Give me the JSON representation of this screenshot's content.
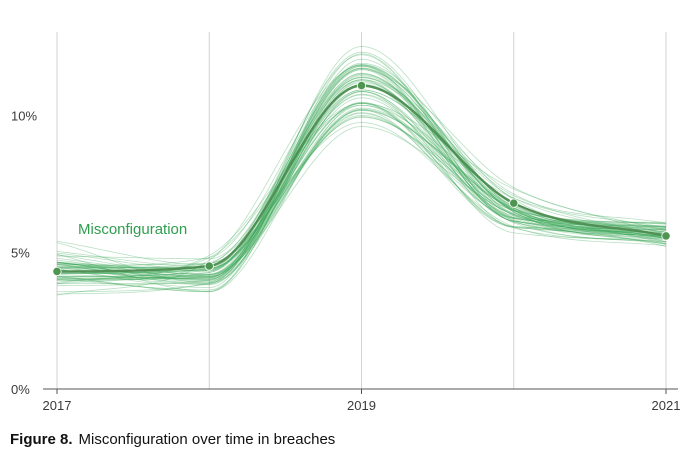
{
  "colors": {
    "band": "#3aa757",
    "mean_line": "#4a8a4e",
    "marker": "#4f9552",
    "label": "#2e9e4f",
    "grid": "#d2d2d2",
    "axis": "#555555"
  },
  "chart_data": {
    "type": "line",
    "title": "",
    "xlabel": "",
    "ylabel": "",
    "x_ticks": [
      {
        "value": 2017,
        "label": "2017"
      },
      {
        "value": 2019,
        "label": "2019"
      },
      {
        "value": 2021,
        "label": "2021"
      }
    ],
    "x_gridlines": [
      2017,
      2018,
      2019,
      2020,
      2021
    ],
    "y_ticks": [
      {
        "value": 0,
        "label": "0%"
      },
      {
        "value": 5,
        "label": "5%"
      },
      {
        "value": 10,
        "label": "10%"
      }
    ],
    "xlim": [
      2017,
      2021
    ],
    "ylim": [
      0,
      13.5
    ],
    "grid": "vertical",
    "series": [
      {
        "name": "Misconfiguration",
        "x": [
          2017,
          2018,
          2019,
          2020,
          2021
        ],
        "y": [
          4.3,
          4.5,
          11.1,
          6.8,
          5.6
        ],
        "uncertainty_band": {
          "lower": [
            3.2,
            3.3,
            9.0,
            5.5,
            5.0
          ],
          "upper": [
            5.6,
            5.2,
            13.3,
            7.6,
            6.3
          ]
        }
      }
    ]
  },
  "caption": {
    "number": "Figure 8.",
    "text": "Misconfiguration over time in breaches"
  }
}
